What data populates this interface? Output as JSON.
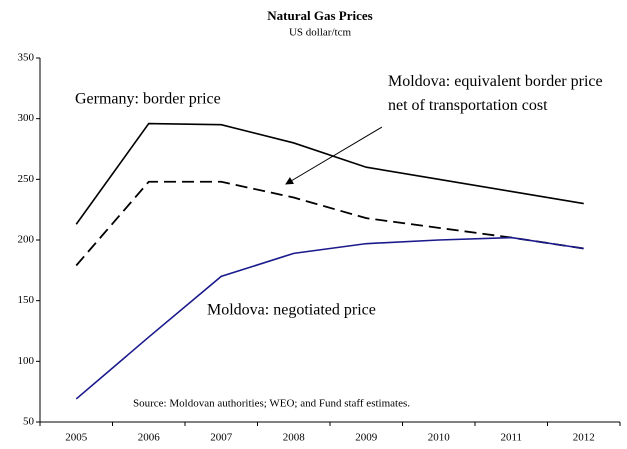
{
  "chart_data": {
    "type": "line",
    "title": "Natural Gas Prices",
    "subtitle": "US dollar/tcm",
    "categories": [
      "2005",
      "2006",
      "2007",
      "2008",
      "2009",
      "2010",
      "2011",
      "2012"
    ],
    "series": [
      {
        "name": "Germany: border price",
        "color": "#000000",
        "dash": "solid",
        "values": [
          213,
          296,
          295,
          280,
          260,
          250,
          240,
          230
        ]
      },
      {
        "name": "Moldova: equivalent border price net of transportation cost",
        "color": "#000000",
        "dash": "dashed",
        "values": [
          179,
          248,
          248,
          235,
          218,
          210,
          202,
          193
        ]
      },
      {
        "name": "Moldova: negotiated price",
        "color": "#1a1a8c",
        "dash": "solid",
        "values": [
          69,
          120,
          170,
          189,
          197,
          200,
          202,
          193
        ]
      }
    ],
    "note": "Source: Moldovan authorities; WEO; and Fund staff estimates.",
    "ylim": [
      50,
      350
    ],
    "yticks": [
      50,
      100,
      150,
      200,
      250,
      300,
      350
    ],
    "grid": false
  }
}
